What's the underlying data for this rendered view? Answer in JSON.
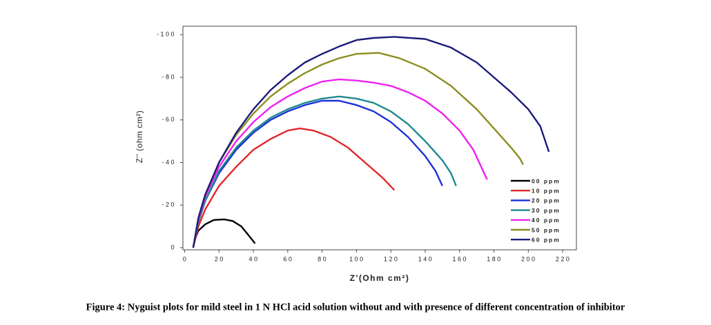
{
  "chart_data": {
    "type": "line",
    "caption": "Figure 4: Nyguist plots for mild steel in 1 N HCl acid solution without and with presence of different concentration of inhibitor",
    "x_label": "Z'(Ohm cm²)",
    "y_label": "Z'' (ohm cm²)",
    "xlim": [
      -1,
      228
    ],
    "ylim": [
      1,
      -104
    ],
    "xticks": [
      0,
      20,
      40,
      60,
      80,
      100,
      120,
      140,
      160,
      180,
      200,
      220
    ],
    "yticks": [
      0,
      -20,
      -40,
      -60,
      -80,
      -100
    ],
    "legend": "lower right",
    "series": [
      {
        "name": "00 ppm",
        "color": "#000000",
        "x": [
          5,
          6,
          8,
          12,
          17,
          23,
          28,
          33,
          37,
          41
        ],
        "values": [
          0,
          -4,
          -8,
          -11,
          -13,
          -13.3,
          -12.5,
          -10,
          -6,
          -2
        ]
      },
      {
        "name": "10 ppm",
        "color": "#e3262a",
        "x": [
          5,
          8,
          12,
          20,
          30,
          40,
          50,
          60,
          67,
          75,
          85,
          95,
          105,
          115,
          122
        ],
        "values": [
          0,
          -10,
          -18,
          -29,
          -38,
          -46,
          -51,
          -55,
          -56,
          -55,
          -52,
          -47,
          -40,
          -33,
          -27
        ]
      },
      {
        "name": "20 ppm",
        "color": "#1c2fd8",
        "x": [
          5,
          8,
          12,
          20,
          30,
          40,
          50,
          60,
          70,
          80,
          90,
          100,
          110,
          120,
          130,
          140,
          146,
          150
        ],
        "values": [
          0,
          -12,
          -22,
          -35,
          -46,
          -54,
          -60,
          -64,
          -67,
          -69,
          -69,
          -67,
          -64,
          -59,
          -52,
          -43,
          -36,
          -29
        ]
      },
      {
        "name": "30 ppm",
        "color": "#1f8a8f",
        "x": [
          5,
          8,
          12,
          20,
          30,
          40,
          50,
          60,
          70,
          80,
          90,
          100,
          110,
          120,
          130,
          140,
          150,
          155,
          158
        ],
        "values": [
          0,
          -12,
          -22,
          -36,
          -47,
          -55,
          -61,
          -65,
          -68,
          -70,
          -71,
          -70,
          -68,
          -64,
          -58,
          -50,
          -41,
          -35,
          -29
        ]
      },
      {
        "name": "40 ppm",
        "color": "#f020f0",
        "x": [
          5,
          8,
          12,
          20,
          30,
          40,
          50,
          60,
          70,
          80,
          90,
          100,
          110,
          120,
          130,
          140,
          150,
          160,
          168,
          176
        ],
        "values": [
          0,
          -13,
          -24,
          -38,
          -50,
          -59,
          -66,
          -71,
          -75,
          -78,
          -79,
          -78.5,
          -77.5,
          -76,
          -73,
          -69,
          -63,
          -55,
          -46,
          -32
        ]
      },
      {
        "name": "50 ppm",
        "color": "#8c8c1f",
        "x": [
          5,
          8,
          12,
          20,
          30,
          40,
          50,
          60,
          70,
          80,
          90,
          100,
          113,
          125,
          140,
          155,
          170,
          180,
          190,
          195,
          197
        ],
        "values": [
          0,
          -14,
          -25,
          -40,
          -53,
          -63,
          -71,
          -77,
          -82,
          -86,
          -89,
          -91,
          -91.5,
          -89,
          -84,
          -76,
          -65,
          -56,
          -47,
          -42,
          -39
        ]
      },
      {
        "name": "60 ppm",
        "color": "#1b1b7a",
        "x": [
          5,
          8,
          12,
          20,
          30,
          40,
          50,
          60,
          70,
          80,
          90,
          100,
          110,
          122,
          140,
          155,
          170,
          180,
          190,
          200,
          207,
          212
        ],
        "values": [
          0,
          -14,
          -25,
          -40,
          -54,
          -65,
          -74,
          -81,
          -87,
          -91,
          -94.5,
          -97.5,
          -98.5,
          -99,
          -98,
          -94,
          -87,
          -80,
          -73,
          -65,
          -57,
          -45
        ]
      }
    ]
  }
}
